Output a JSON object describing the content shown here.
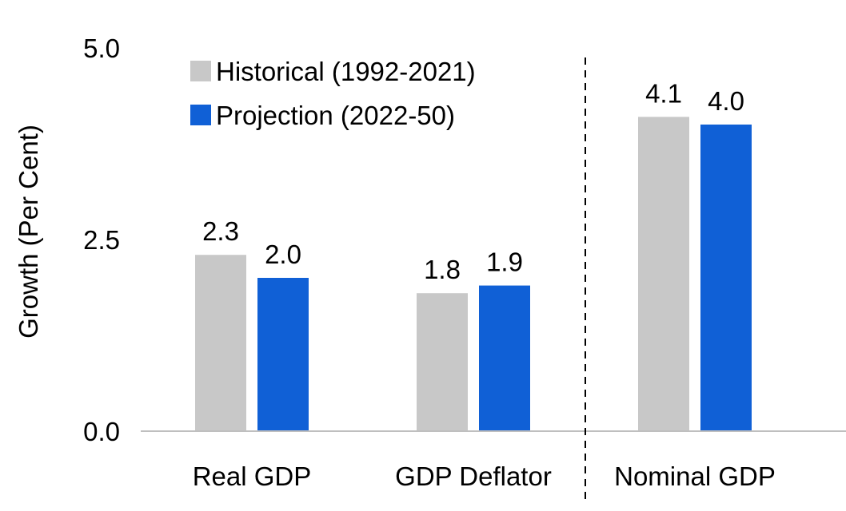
{
  "chart_data": {
    "type": "bar",
    "title": "",
    "xlabel": "",
    "ylabel": "Growth (Per Cent)",
    "categories": [
      "Real GDP",
      "GDP Deflator",
      "Nominal GDP"
    ],
    "series": [
      {
        "name": "Historical (1992-2021)",
        "values": [
          2.3,
          1.8,
          4.1
        ],
        "color": "#c8c8c8"
      },
      {
        "name": "Projection (2022-50)",
        "values": [
          2.0,
          1.9,
          4.0
        ],
        "color": "#1060d6"
      }
    ],
    "ylim": [
      0,
      5
    ],
    "yticks": [
      "0.0",
      "2.5",
      "5.0"
    ],
    "grid": false,
    "legend_position": "top-left",
    "separator": "dashed vertical line between GDP Deflator and Nominal GDP"
  }
}
